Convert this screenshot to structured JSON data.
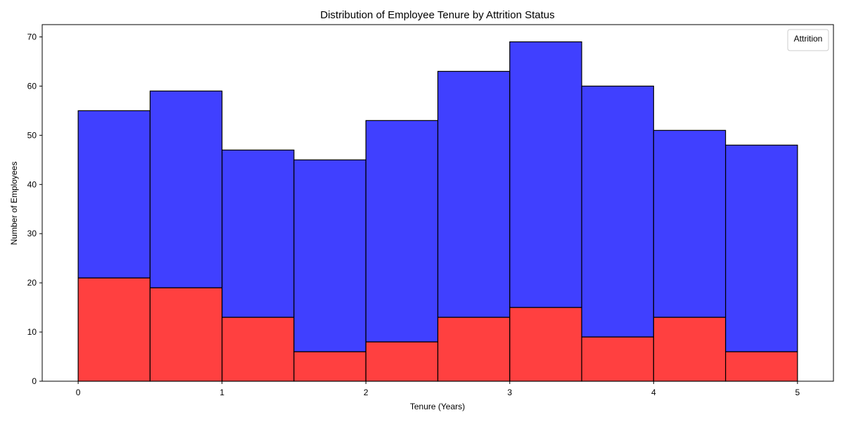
{
  "chart_data": {
    "type": "bar",
    "title": "Distribution of Employee Tenure by Attrition Status",
    "xlabel": "Tenure (Years)",
    "ylabel": "Number of Employees",
    "stacked": true,
    "bin_edges": [
      0,
      0.5,
      1,
      1.5,
      2,
      2.5,
      3,
      3.5,
      4,
      4.5,
      5
    ],
    "series": [
      {
        "color": "#ff0000",
        "values": [
          21,
          19,
          13,
          6,
          8,
          13,
          15,
          9,
          13,
          6
        ]
      },
      {
        "color": "#0000ff",
        "values": [
          34,
          40,
          34,
          39,
          45,
          50,
          54,
          51,
          38,
          42
        ]
      }
    ],
    "totals": [
      55,
      59,
      47,
      45,
      53,
      63,
      69,
      60,
      51,
      48
    ],
    "xlim": [
      -0.25,
      5.25
    ],
    "ylim": [
      0,
      72.5
    ],
    "xticks": [
      "0",
      "1",
      "2",
      "3",
      "4",
      "5"
    ],
    "yticks": [
      "0",
      "10",
      "20",
      "30",
      "40",
      "50",
      "60",
      "70"
    ],
    "grid": false,
    "legend": {
      "title": "Attrition",
      "placement": "top-right"
    }
  }
}
